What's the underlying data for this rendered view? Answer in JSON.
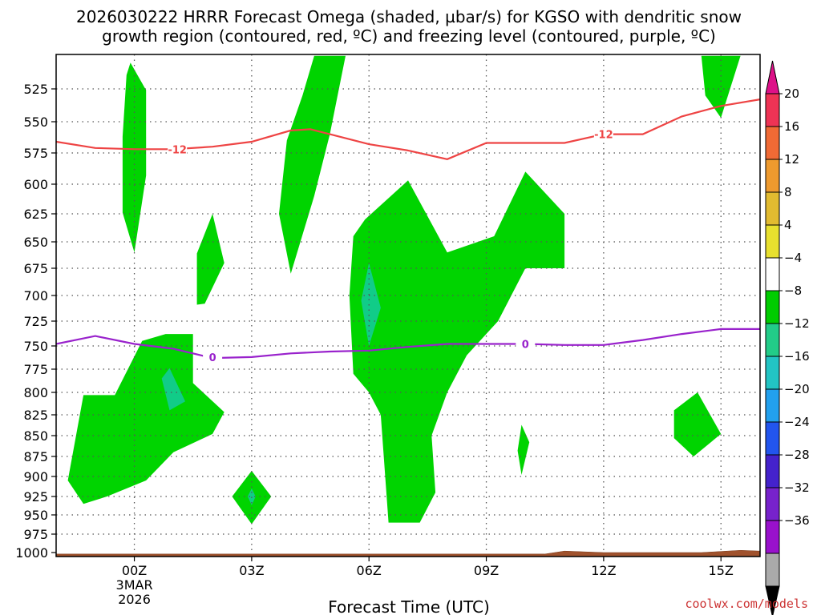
{
  "chart_data": {
    "type": "contour",
    "title_line1": "2026030222 HRRR Forecast Omega (shaded, µbar/s) for KGSO with dendritic snow",
    "title_line2": "growth region (contoured, red, ºC) and freezing level (contoured, purple, ºC)",
    "xlabel": "Forecast Time (UTC)",
    "credit": "coolwx.com/models",
    "x_range_hours": [
      -2,
      16
    ],
    "y_range_mb": [
      1000,
      500
    ],
    "x_ticks": [
      {
        "h": 0,
        "label": "00Z"
      },
      {
        "h": 3,
        "label": "03Z"
      },
      {
        "h": 6,
        "label": "06Z"
      },
      {
        "h": 9,
        "label": "09Z"
      },
      {
        "h": 12,
        "label": "12Z"
      },
      {
        "h": 15,
        "label": "15Z"
      }
    ],
    "date_label_line1": "3MAR",
    "date_label_line2": "2026",
    "y_ticks": [
      1000,
      975,
      950,
      925,
      900,
      875,
      850,
      825,
      800,
      775,
      750,
      725,
      700,
      675,
      650,
      625,
      600,
      575,
      550,
      525
    ],
    "colorbar": {
      "labels": [
        "20",
        "16",
        "12",
        "8",
        "4",
        "−4",
        "−8",
        "−12",
        "−16",
        "−20",
        "−24",
        "−28",
        "−32",
        "−36"
      ],
      "colors": [
        "#ee3355",
        "#f06a35",
        "#ee9a2e",
        "#e2bb30",
        "#e8e02e",
        "#ffffff",
        "#00cc00",
        "#22cc88",
        "#22c4c4",
        "#22a0ee",
        "#2255ee",
        "#4422cc",
        "#7722cc",
        "#9911cc",
        "#aaaaaa"
      ],
      "top_arrow_color": "#dd1188",
      "bottom_arrow_color": "#000000"
    },
    "omega_regions": [
      {
        "name": "omega-region-a",
        "level": "-4",
        "pts": [
          [
            -0.1,
            506
          ],
          [
            0.3,
            526
          ],
          [
            0.3,
            593
          ],
          [
            0,
            660
          ],
          [
            -0.3,
            624
          ],
          [
            -0.3,
            562
          ],
          [
            -0.2,
            515
          ]
        ]
      },
      {
        "name": "omega-region-b",
        "level": "-4",
        "pts": [
          [
            1.6,
            709
          ],
          [
            1.6,
            661
          ],
          [
            2.0,
            625
          ],
          [
            2.3,
            670
          ],
          [
            1.8,
            708
          ]
        ]
      },
      {
        "name": "omega-region-c",
        "level": "-4",
        "pts": [
          [
            4.6,
            501
          ],
          [
            5.4,
            501
          ],
          [
            5.0,
            560
          ],
          [
            4.6,
            610
          ],
          [
            4.0,
            680
          ],
          [
            3.7,
            625
          ],
          [
            3.9,
            565
          ],
          [
            4.3,
            530
          ]
        ]
      },
      {
        "name": "omega-region-d",
        "level": "-4",
        "pts": [
          [
            -1.3,
            803
          ],
          [
            -0.5,
            803
          ],
          [
            0.2,
            745
          ],
          [
            0.8,
            738
          ],
          [
            1.5,
            738
          ],
          [
            1.5,
            790
          ],
          [
            2.3,
            822
          ],
          [
            2.0,
            848
          ],
          [
            1.0,
            870
          ],
          [
            0.3,
            905
          ],
          [
            -0.7,
            925
          ],
          [
            -1.3,
            935
          ],
          [
            -1.7,
            905
          ]
        ]
      },
      {
        "name": "omega-region-e",
        "level": "-4",
        "pts": [
          [
            5.9,
            630
          ],
          [
            7.0,
            597
          ],
          [
            8.0,
            660
          ],
          [
            9.2,
            645
          ],
          [
            10.0,
            590
          ],
          [
            11.0,
            625
          ],
          [
            11.0,
            675
          ],
          [
            10.0,
            675
          ],
          [
            9.3,
            725
          ],
          [
            8.5,
            760
          ],
          [
            8.0,
            800
          ],
          [
            7.6,
            850
          ],
          [
            7.7,
            920
          ],
          [
            7.3,
            960
          ],
          [
            6.5,
            960
          ],
          [
            6.3,
            825
          ],
          [
            6.0,
            800
          ],
          [
            5.6,
            780
          ],
          [
            5.5,
            700
          ],
          [
            5.6,
            645
          ]
        ]
      },
      {
        "name": "omega-region-f",
        "level": "-4",
        "pts": [
          [
            3.0,
            893
          ],
          [
            3.5,
            925
          ],
          [
            3.0,
            962
          ],
          [
            2.5,
            925
          ]
        ]
      },
      {
        "name": "omega-region-g",
        "level": "-4",
        "pts": [
          [
            9.9,
            837
          ],
          [
            10.1,
            858
          ],
          [
            9.9,
            898
          ],
          [
            9.8,
            868
          ]
        ]
      },
      {
        "name": "omega-region-h",
        "level": "-4",
        "pts": [
          [
            14.4,
            800
          ],
          [
            15.0,
            848
          ],
          [
            14.3,
            875
          ],
          [
            13.8,
            853
          ],
          [
            13.8,
            820
          ]
        ]
      },
      {
        "name": "omega-region-i",
        "level": "-4",
        "pts": [
          [
            14.5,
            501
          ],
          [
            15.5,
            501
          ],
          [
            15.0,
            547
          ],
          [
            14.6,
            530
          ]
        ]
      },
      {
        "name": "omega-region-j",
        "level": "-8",
        "pts": [
          [
            0.9,
            774
          ],
          [
            1.3,
            810
          ],
          [
            0.9,
            820
          ],
          [
            0.7,
            785
          ]
        ]
      },
      {
        "name": "omega-region-k",
        "level": "-8",
        "pts": [
          [
            6.0,
            670
          ],
          [
            6.3,
            712
          ],
          [
            6.0,
            750
          ],
          [
            5.8,
            705
          ]
        ]
      },
      {
        "name": "omega-region-l",
        "level": "-8",
        "pts": [
          [
            3.0,
            915
          ],
          [
            3.1,
            925
          ],
          [
            3.0,
            937
          ],
          [
            2.9,
            925
          ]
        ]
      }
    ],
    "isotherm_minus12": {
      "label": "-12",
      "label_positions": [
        [
          1.1,
          572
        ],
        [
          12.0,
          560
        ]
      ],
      "points": [
        [
          -2,
          566
        ],
        [
          -1,
          571
        ],
        [
          0,
          572
        ],
        [
          1,
          572
        ],
        [
          2,
          570
        ],
        [
          3,
          566
        ],
        [
          4,
          557
        ],
        [
          4.5,
          556
        ],
        [
          5,
          560
        ],
        [
          6,
          568
        ],
        [
          7,
          573
        ],
        [
          8,
          580
        ],
        [
          9,
          567
        ],
        [
          10,
          567
        ],
        [
          11,
          567
        ],
        [
          12,
          560
        ],
        [
          13,
          560
        ],
        [
          14,
          546
        ],
        [
          15,
          538
        ],
        [
          16,
          533
        ]
      ]
    },
    "isotherm_zero": {
      "label": "0",
      "label_positions": [
        [
          2.0,
          762
        ],
        [
          10.0,
          748
        ]
      ],
      "points": [
        [
          -2,
          748
        ],
        [
          -1,
          740
        ],
        [
          0,
          748
        ],
        [
          1,
          753
        ],
        [
          2,
          763
        ],
        [
          3,
          762
        ],
        [
          4,
          758
        ],
        [
          5,
          756
        ],
        [
          6,
          755
        ],
        [
          7,
          751
        ],
        [
          8,
          748
        ],
        [
          9,
          748
        ],
        [
          10,
          748
        ],
        [
          11,
          749
        ],
        [
          12,
          749
        ],
        [
          13,
          744
        ],
        [
          14,
          738
        ],
        [
          15,
          733
        ],
        [
          16,
          733
        ]
      ]
    }
  }
}
